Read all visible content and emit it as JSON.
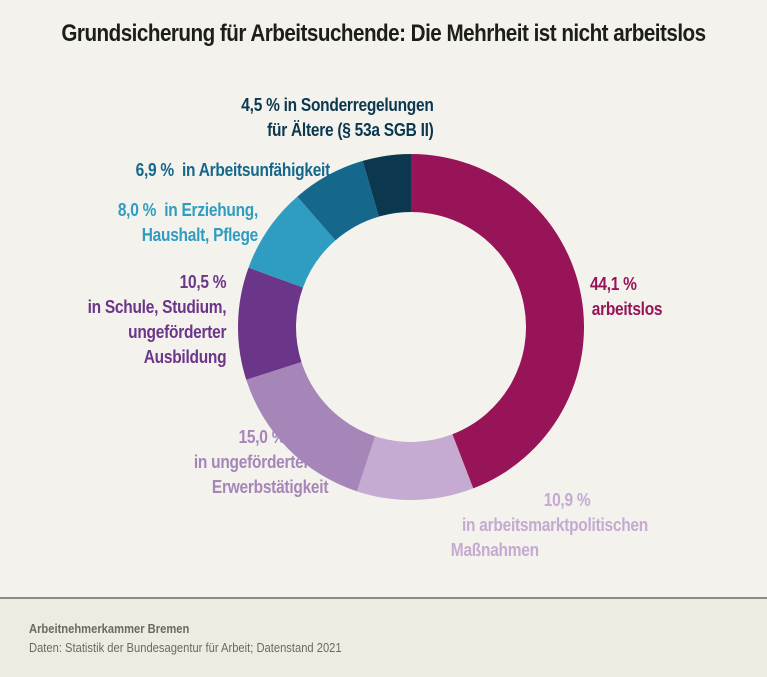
{
  "title": "Grundsicherung für Arbeitsuchende: Die Mehrheit ist nicht arbeitslos",
  "chart_data": {
    "type": "pie",
    "variant": "donut",
    "title": "Grundsicherung für Arbeitsuchende: Die Mehrheit ist nicht arbeitslos",
    "unit": "%",
    "start": "12 o'clock, clockwise",
    "slices": [
      {
        "id": "arbeitslos",
        "value": 44.1,
        "label_value": "44,1 %",
        "label_lines": [
          "arbeitslos"
        ],
        "color": "#981458"
      },
      {
        "id": "massnahmen",
        "value": 10.9,
        "label_value": "10,9 %",
        "label_lines": [
          "in arbeitsmarktpolitischen",
          "Maßnahmen"
        ],
        "color": "#c5aad2"
      },
      {
        "id": "erwerbstaetigkeit",
        "value": 15.0,
        "label_value": "15,0 %",
        "label_lines": [
          "in ungeförderter",
          "Erwerbstätigkeit"
        ],
        "color": "#a686b9"
      },
      {
        "id": "schule",
        "value": 10.5,
        "label_value": "10,5 %",
        "label_lines": [
          "in Schule, Studium,",
          "ungeförderter",
          "Ausbildung"
        ],
        "color": "#6b3589"
      },
      {
        "id": "erziehung",
        "value": 8.0,
        "label_value": "8,0 %",
        "label_lines": [
          "in Erziehung,",
          "Haushalt, Pflege"
        ],
        "color": "#2f9dc1"
      },
      {
        "id": "arbeitsunfaehigkeit",
        "value": 6.9,
        "label_value": "6,9 %",
        "label_lines": [
          "in Arbeitsunfähigkeit"
        ],
        "color": "#15688b"
      },
      {
        "id": "sonderregelungen",
        "value": 4.5,
        "label_value": "4,5 %",
        "label_lines": [
          "in Sonderregelungen",
          "für Ältere (§ 53a SGB II)"
        ],
        "color": "#0b374f"
      }
    ],
    "labels": {
      "arbeitslos": [
        "44,1 %",
        "arbeitslos"
      ],
      "massnahmen": [
        "10,9 %",
        "in arbeitsmarktpolitischen",
        "Maßnahmen"
      ],
      "erwerbstaetigkeit": [
        "15,0 %",
        "in ungeförderter",
        "Erwerbstätigkeit"
      ],
      "schule": [
        "10,5 %",
        "in Schule, Studium,",
        "ungeförderter",
        "Ausbildung"
      ],
      "erziehung": [
        "8,0 %  in Erziehung,",
        "Haushalt, Pflege"
      ],
      "arbeitsunfaehigkeit": [
        "6,9 %  in Arbeitsunfähigkeit"
      ],
      "sonderregelungen": [
        "4,5 % in Sonderregelungen",
        "für Ältere (§ 53a SGB II)"
      ]
    }
  },
  "label_colors": {
    "arbeitslos": "#981458",
    "massnahmen": "#c5aad2",
    "erwerbstaetigkeit": "#a686b9",
    "schule": "#6b3589",
    "erziehung": "#2f9dc1",
    "arbeitsunfaehigkeit": "#15688b",
    "sonderregelungen": "#0b374f"
  },
  "footer": {
    "publisher": "Arbeitnehmerkammer Bremen",
    "source": "Daten: Statistik der Bundesagentur für Arbeit; Datenstand 2021"
  }
}
